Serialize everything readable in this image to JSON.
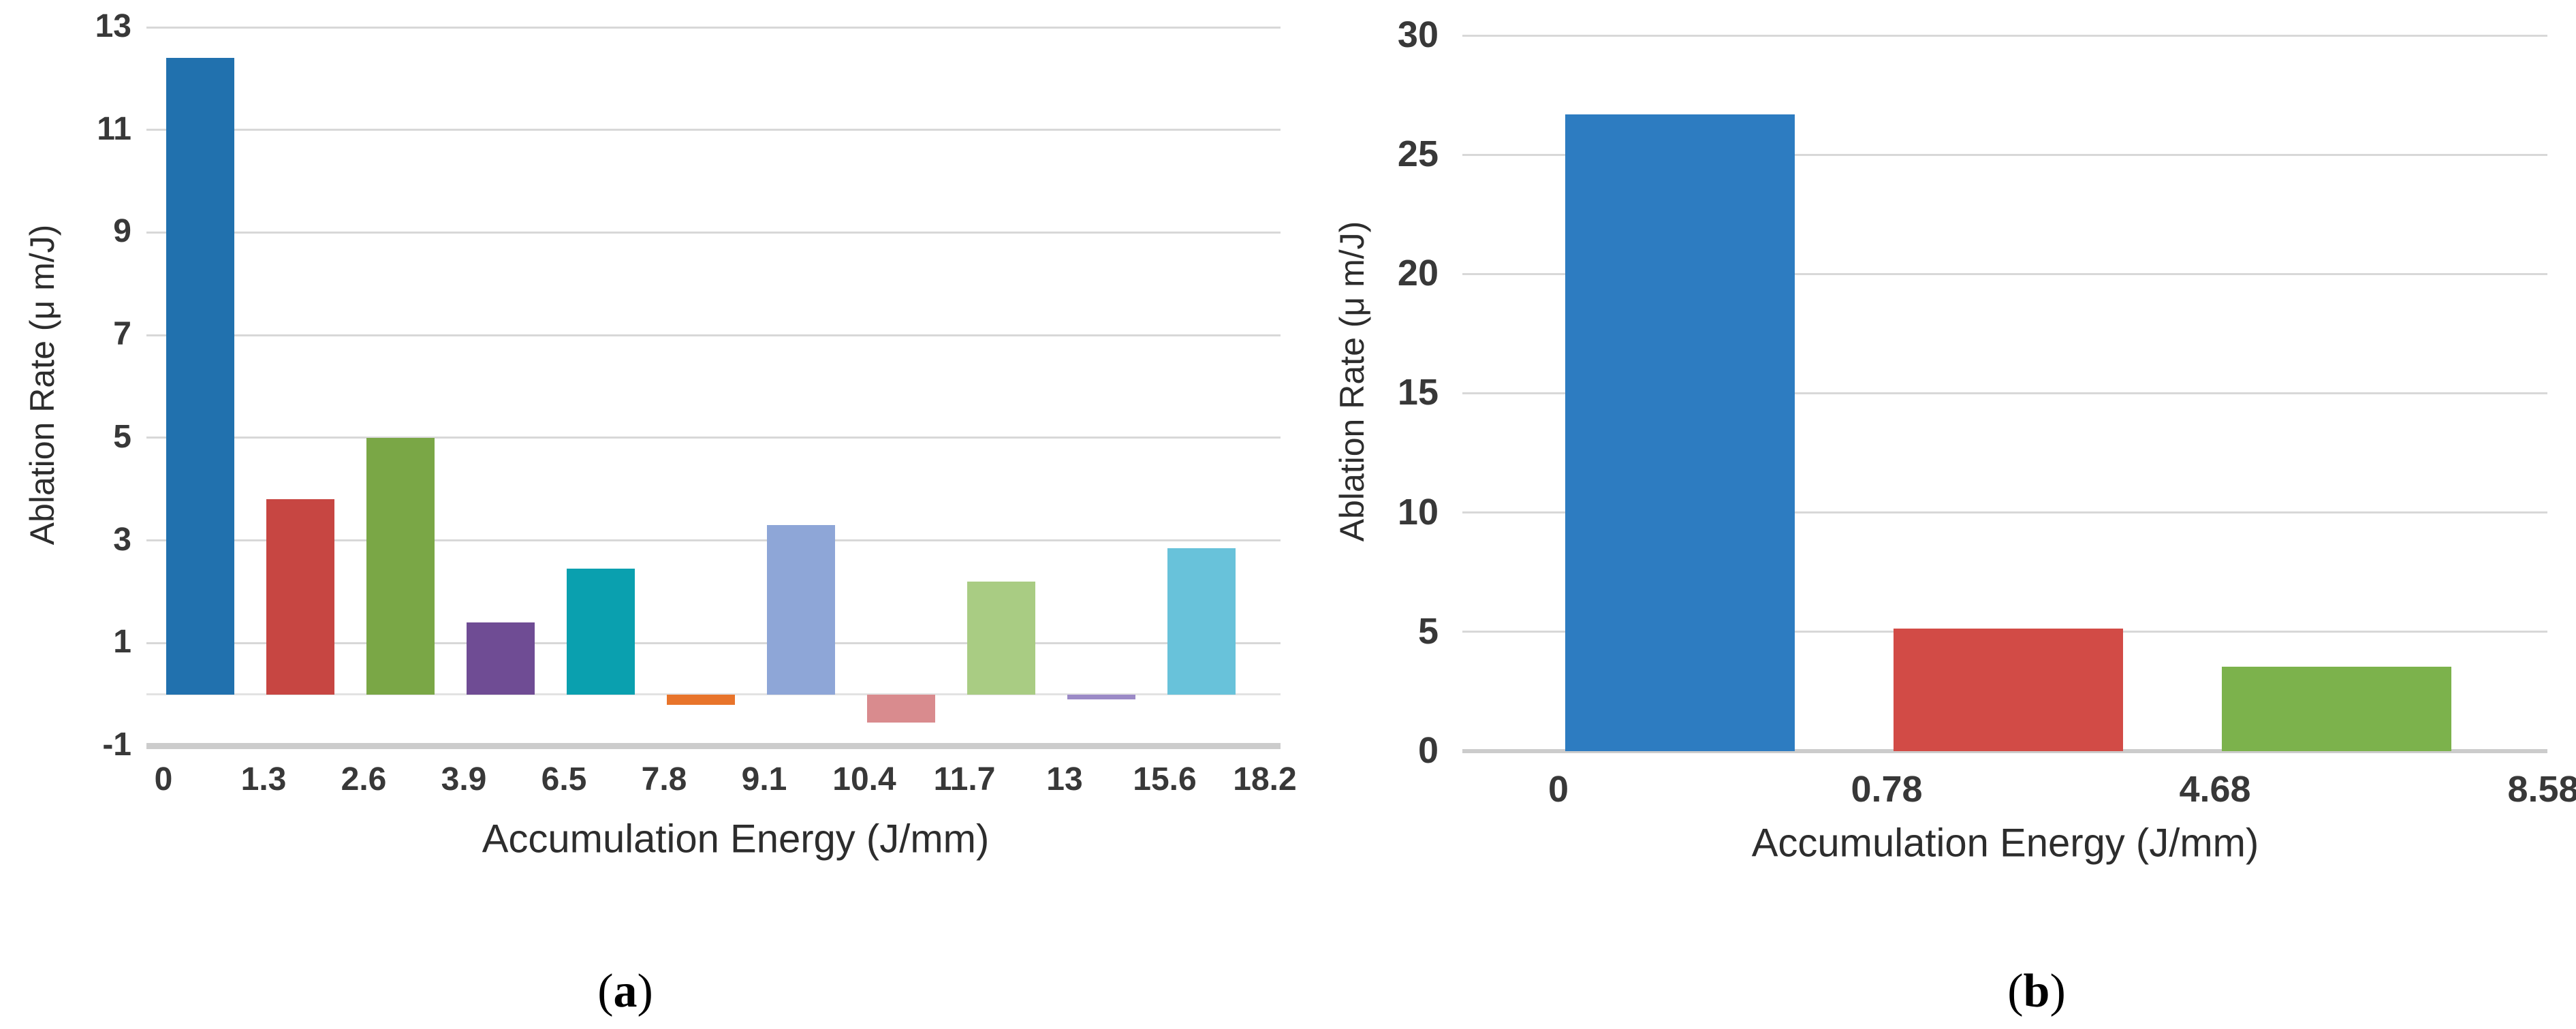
{
  "figure": {
    "background": "#ffffff",
    "style": {
      "gridline_color": "#d8d8d8",
      "axis_bottom_line_color": "#cccccc",
      "zero_line_color": "#e2e2e2",
      "tick_text_color": "#383838",
      "title_text_color": "#2d2d2d",
      "caption_text_color": "#000000"
    }
  },
  "chart_data": [
    {
      "id": "a",
      "type": "bar",
      "title": "",
      "xlabel": "Accumulation Energy (J/mm)",
      "ylabel": "Ablation Rate (μ m/J)",
      "caption_prefix": "(",
      "caption_letter": "a",
      "caption_suffix": ")",
      "bin_edge_labels": [
        "0",
        "1.3",
        "2.6",
        "3.9",
        "6.5",
        "7.8",
        "9.1",
        "10.4",
        "11.7",
        "13",
        "15.6",
        "18.2"
      ],
      "categories": [
        "0–1.3",
        "1.3–2.6",
        "2.6–3.9",
        "3.9–6.5",
        "6.5–7.8",
        "7.8–9.1",
        "9.1–10.4",
        "10.4–11.7",
        "11.7–13",
        "13–15.6",
        "15.6–18.2"
      ],
      "values": [
        12.4,
        3.8,
        5.0,
        1.4,
        2.45,
        -0.2,
        3.3,
        -0.55,
        2.2,
        -0.1,
        2.85
      ],
      "bar_colors": [
        "#2171ae",
        "#c74642",
        "#7aa746",
        "#6f4c94",
        "#0aa0af",
        "#e8742b",
        "#8ea6d7",
        "#d98b8e",
        "#a9cc83",
        "#9b8ac6",
        "#68c2da"
      ],
      "yticks": [
        13,
        11,
        9,
        7,
        5,
        3,
        1,
        -1
      ],
      "ylim": [
        -1,
        13
      ],
      "grid": true,
      "legend": "none"
    },
    {
      "id": "b",
      "type": "bar",
      "title": "",
      "xlabel": "Accumulation Energy (J/mm)",
      "ylabel": "Ablation Rate (μ m/J)",
      "caption_prefix": "(",
      "caption_letter": "b",
      "caption_suffix": ")",
      "bin_edge_labels": [
        "0",
        "0.78",
        "4.68",
        "8.58"
      ],
      "categories": [
        "0–0.78",
        "0.78–4.68",
        "4.68–8.58"
      ],
      "values": [
        26.7,
        5.15,
        3.55
      ],
      "bar_colors": [
        "#2d7cc1",
        "#d24b46",
        "#7cb24c"
      ],
      "yticks": [
        30,
        25,
        20,
        15,
        10,
        5,
        0
      ],
      "ylim": [
        0,
        30
      ],
      "grid": true,
      "legend": "none"
    }
  ]
}
